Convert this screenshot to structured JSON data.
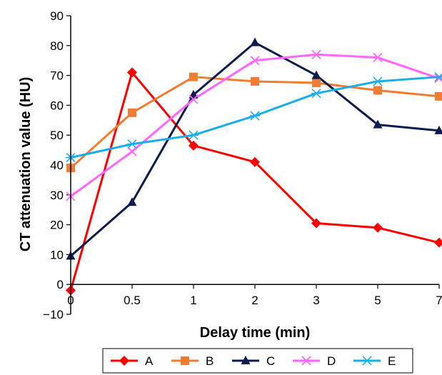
{
  "chart_data": {
    "type": "line",
    "title": "",
    "xlabel": "Delay time (min)",
    "ylabel": "CT attenuation value (HU)",
    "categories": [
      "0",
      "0.5",
      "1",
      "2",
      "3",
      "5",
      "7"
    ],
    "ylim": [
      -10,
      90
    ],
    "yticks": [
      -10,
      0,
      10,
      20,
      30,
      40,
      50,
      60,
      70,
      80,
      90
    ],
    "grid": false,
    "legend_position": "bottom",
    "series": [
      {
        "name": "A",
        "color": "#ff0000",
        "marker": "diamond",
        "values": [
          -2,
          71,
          46.5,
          41,
          20.5,
          19,
          14
        ]
      },
      {
        "name": "B",
        "color": "#f07d32",
        "marker": "square",
        "values": [
          39,
          57.5,
          69.5,
          68,
          67.5,
          65,
          63
        ]
      },
      {
        "name": "C",
        "color": "#0d1c4f",
        "marker": "triangle",
        "values": [
          9.5,
          27.5,
          63.5,
          81,
          70,
          53.5,
          51.5
        ]
      },
      {
        "name": "D",
        "color": "#ff66ff",
        "marker": "x",
        "values": [
          29.5,
          44.5,
          62,
          75,
          77,
          76,
          69
        ]
      },
      {
        "name": "E",
        "color": "#1aaeea",
        "marker": "asterisk",
        "values": [
          42.5,
          47,
          50,
          56.5,
          64,
          68,
          69.5
        ]
      }
    ]
  }
}
